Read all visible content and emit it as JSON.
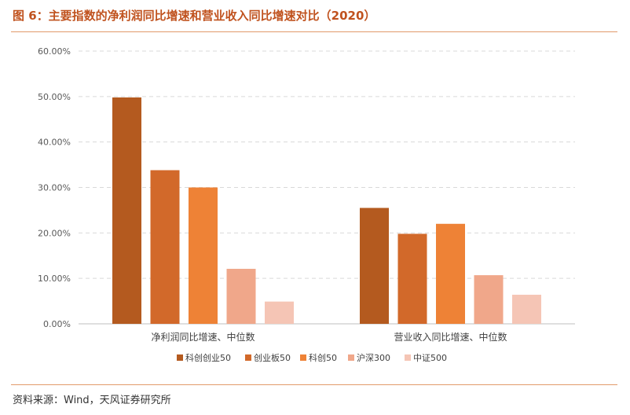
{
  "figure": {
    "title": "图 6：主要指数的净利润同比增速和营业收入同比增速对比（2020）",
    "source": "资料来源：Wind，天风证券研究所"
  },
  "chart_data": {
    "type": "bar",
    "categories": [
      "净利润同比增速、中位数",
      "营业收入同比增速、中位数"
    ],
    "series": [
      {
        "name": "科创创业50",
        "color": "#b45a1f",
        "values": [
          49.8,
          25.5
        ]
      },
      {
        "name": "创业板50",
        "color": "#d2692a",
        "values": [
          33.8,
          19.8
        ]
      },
      {
        "name": "科创50",
        "color": "#ee8236",
        "values": [
          30.0,
          22.0
        ]
      },
      {
        "name": "沪深300",
        "color": "#f0a78a",
        "values": [
          12.1,
          10.7
        ]
      },
      {
        "name": "中证500",
        "color": "#f5c5b5",
        "values": [
          4.9,
          6.4
        ]
      }
    ],
    "ylim": [
      0,
      60
    ],
    "yticks": [
      0,
      10,
      20,
      30,
      40,
      50,
      60
    ],
    "ytick_labels": [
      "0.00%",
      "10.00%",
      "20.00%",
      "30.00%",
      "40.00%",
      "50.00%",
      "60.00%"
    ],
    "grid": true,
    "legend_position": "bottom"
  }
}
